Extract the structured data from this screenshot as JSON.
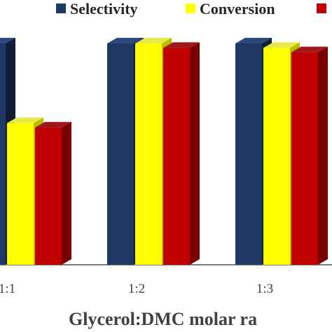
{
  "chart_data": {
    "type": "bar",
    "style": "3d-clustered-column",
    "categories": [
      "1:1",
      "1:2",
      "1:3"
    ],
    "series": [
      {
        "name": "Selectivity",
        "color": "#1f3864",
        "side_color": "#0f1d36",
        "top_color": "#2c4a80",
        "values": [
          100,
          100,
          100
        ]
      },
      {
        "name": "Conversion",
        "color": "#ffff00",
        "side_color": "#bdbd00",
        "top_color": "#e8e84a",
        "values": [
          64,
          100,
          98
        ]
      },
      {
        "name": "",
        "color": "#c00000",
        "side_color": "#7a0000",
        "top_color": "#9e1a1a",
        "values": [
          62,
          98,
          96
        ]
      }
    ],
    "xlabel": "Glycerol:DMC  molar ra",
    "ylim": [
      0,
      100
    ],
    "legend_position": "top",
    "grid": false
  }
}
